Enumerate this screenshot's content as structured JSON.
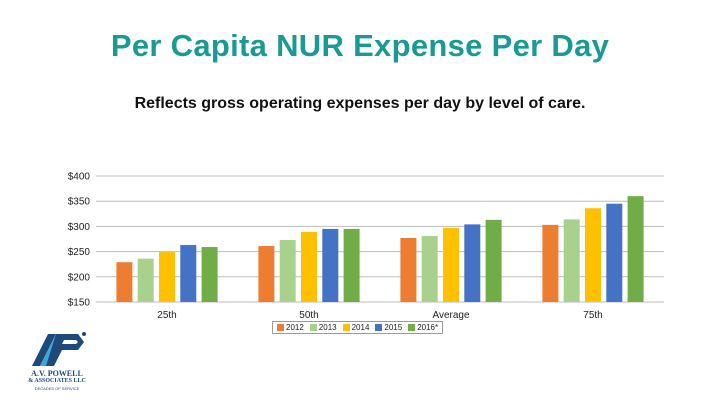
{
  "slide": {
    "title": "Per Capita NUR Expense Per Day",
    "subtitle": "Reflects gross operating expenses per day by level of care."
  },
  "logo": {
    "line1": "A.V. POWELL",
    "line2": "& ASSOCIATES LLC",
    "line3": "DECADES OF SERVICE",
    "icon": "av-powell-logo"
  },
  "chart_data": {
    "type": "bar",
    "categories": [
      "25th",
      "50th",
      "Average",
      "75th"
    ],
    "series": [
      {
        "name": "2012",
        "color": "#ed7d31",
        "values": [
          229,
          261,
          277,
          303
        ]
      },
      {
        "name": "2013",
        "color": "#a9d18e",
        "values": [
          236,
          273,
          281,
          314
        ]
      },
      {
        "name": "2014",
        "color": "#ffc000",
        "values": [
          249,
          289,
          297,
          336
        ]
      },
      {
        "name": "2015",
        "color": "#4472c4",
        "values": [
          263,
          295,
          304,
          345
        ]
      },
      {
        "name": "2016*",
        "color": "#70ad47",
        "values": [
          259,
          295,
          313,
          360
        ]
      }
    ],
    "ylim": [
      150,
      400
    ],
    "yticks": [
      150,
      200,
      250,
      300,
      350,
      400
    ],
    "ytick_labels": [
      "$150",
      "$200",
      "$250",
      "$300",
      "$350",
      "$400"
    ],
    "grid": true,
    "legend_position": "bottom"
  }
}
